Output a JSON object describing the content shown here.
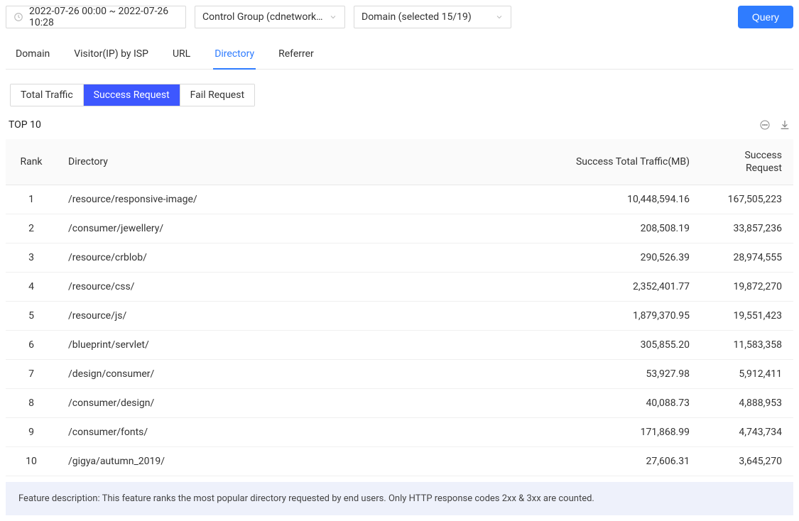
{
  "controls": {
    "date_range": "2022-07-26 00:00 ~ 2022-07-26 10:28",
    "control_group": "Control Group (cdnetworks…",
    "domain_select": "Domain (selected 15/19)",
    "query_button": "Query"
  },
  "tabs": [
    "Domain",
    "Visitor(IP) by ISP",
    "URL",
    "Directory",
    "Referrer"
  ],
  "active_tab_index": 3,
  "subtabs": [
    "Total Traffic",
    "Success Request",
    "Fail Request"
  ],
  "active_subtab_index": 1,
  "section_title": "TOP 10",
  "table": {
    "columns": {
      "rank": "Rank",
      "directory": "Directory",
      "traffic": "Success Total Traffic(MB)",
      "request_l1": "Success",
      "request_l2": "Request"
    },
    "rows": [
      {
        "rank": "1",
        "dir": "/resource/responsive-image/",
        "traffic": "10,448,594.16",
        "requests": "167,505,223"
      },
      {
        "rank": "2",
        "dir": "/consumer/jewellery/",
        "traffic": "208,508.19",
        "requests": "33,857,236"
      },
      {
        "rank": "3",
        "dir": "/resource/crblob/",
        "traffic": "290,526.39",
        "requests": "28,974,555"
      },
      {
        "rank": "4",
        "dir": "/resource/css/",
        "traffic": "2,352,401.77",
        "requests": "19,872,270"
      },
      {
        "rank": "5",
        "dir": "/resource/js/",
        "traffic": "1,879,370.95",
        "requests": "19,551,423"
      },
      {
        "rank": "6",
        "dir": "/blueprint/servlet/",
        "traffic": "305,855.20",
        "requests": "11,583,358"
      },
      {
        "rank": "7",
        "dir": "/design/consumer/",
        "traffic": "53,927.98",
        "requests": "5,912,411"
      },
      {
        "rank": "8",
        "dir": "/consumer/design/",
        "traffic": "40,088.73",
        "requests": "4,888,953"
      },
      {
        "rank": "9",
        "dir": "/consumer/fonts/",
        "traffic": "171,868.99",
        "requests": "4,743,734"
      },
      {
        "rank": "10",
        "dir": "/gigya/autumn_2019/",
        "traffic": "27,606.31",
        "requests": "3,645,270"
      }
    ]
  },
  "footnote": "Feature description: This feature ranks the most popular directory requested by end users. Only HTTP response codes 2xx & 3xx are counted.",
  "colors": {
    "primary": "#2f7cff",
    "subtab_active": "#3d57ff",
    "border": "#d9d9d9",
    "row_border": "#f0f0f0",
    "thead_bg": "#fafafa",
    "footnote_bg": "#eef1fb"
  }
}
